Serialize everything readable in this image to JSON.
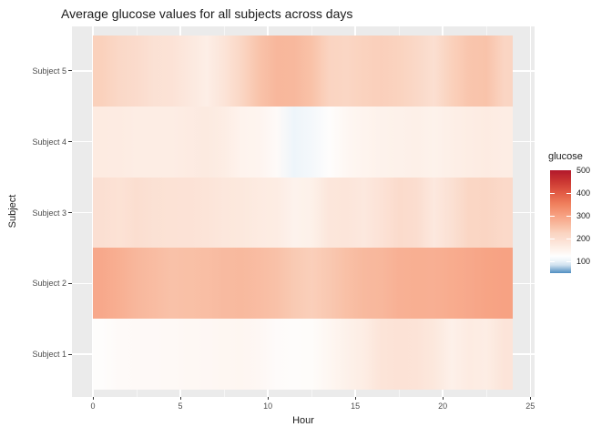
{
  "chart_data": {
    "type": "heatmap",
    "title": "Average glucose values for all subjects across days",
    "xlabel": "Hour",
    "ylabel": "Subject",
    "x_hours": [
      0,
      1,
      2,
      3,
      4,
      5,
      6,
      7,
      8,
      9,
      10,
      11,
      12,
      13,
      14,
      15,
      16,
      17,
      18,
      19,
      20,
      21,
      22,
      23
    ],
    "x_ticks": [
      0,
      5,
      10,
      15,
      20,
      25
    ],
    "x_minor_ticks": [
      2.5,
      7.5,
      12.5,
      17.5,
      22.5
    ],
    "x_axis_range": [
      0,
      25
    ],
    "categories_top_to_bottom": [
      "Subject 5",
      "Subject 4",
      "Subject 3",
      "Subject 2",
      "Subject 1"
    ],
    "series": [
      {
        "name": "Subject 5",
        "values": [
          230,
          215,
          205,
          192,
          188,
          175,
          162,
          185,
          220,
          250,
          268,
          266,
          252,
          225,
          220,
          228,
          232,
          227,
          215,
          196,
          230,
          247,
          250,
          222
        ]
      },
      {
        "name": "Subject 4",
        "values": [
          170,
          168,
          165,
          165,
          165,
          168,
          172,
          165,
          150,
          147,
          133,
          105,
          112,
          128,
          140,
          148,
          153,
          155,
          158,
          153,
          160,
          165,
          168,
          165
        ]
      },
      {
        "name": "Subject 3",
        "values": [
          195,
          190,
          198,
          192,
          190,
          188,
          185,
          178,
          176,
          170,
          166,
          152,
          156,
          180,
          182,
          175,
          188,
          205,
          200,
          175,
          193,
          220,
          222,
          210
        ]
      },
      {
        "name": "Subject 2",
        "values": [
          290,
          280,
          268,
          260,
          253,
          255,
          257,
          263,
          265,
          260,
          253,
          240,
          233,
          242,
          255,
          265,
          268,
          278,
          280,
          279,
          285,
          290,
          297,
          300
        ]
      },
      {
        "name": "Subject 1",
        "values": [
          128,
          133,
          135,
          135,
          136,
          138,
          139,
          141,
          143,
          139,
          131,
          129,
          130,
          141,
          155,
          165,
          185,
          188,
          186,
          176,
          157,
          168,
          165,
          184
        ]
      }
    ],
    "legend": {
      "title": "glucose",
      "ticks": [
        500,
        400,
        300,
        200,
        100
      ],
      "domain": [
        50,
        500
      ],
      "position": "right"
    },
    "colormap": {
      "name": "RdBu-reversed",
      "stops": [
        [
          50,
          "#4f8ec1"
        ],
        [
          85,
          "#cfe1ef"
        ],
        [
          105,
          "#eef5fa"
        ],
        [
          125,
          "#fefefe"
        ],
        [
          140,
          "#fef7f3"
        ],
        [
          160,
          "#fdefe7"
        ],
        [
          180,
          "#fce6db"
        ],
        [
          200,
          "#fbddcf"
        ],
        [
          225,
          "#fad4c1"
        ],
        [
          250,
          "#f9c3aa"
        ],
        [
          275,
          "#f8b296"
        ],
        [
          300,
          "#f7a283"
        ],
        [
          350,
          "#f0825f"
        ],
        [
          400,
          "#e25c45"
        ],
        [
          450,
          "#cb3732"
        ],
        [
          500,
          "#b2182b"
        ]
      ]
    },
    "grid": true,
    "colors": {
      "panel_bg": "#ebebeb",
      "grid_major": "#ffffff",
      "grid_minor": "rgba(255,255,255,0.55)",
      "tick_label": "#4d4d4d",
      "tick_mark": "#333333",
      "text": "#1a1a1a"
    }
  }
}
